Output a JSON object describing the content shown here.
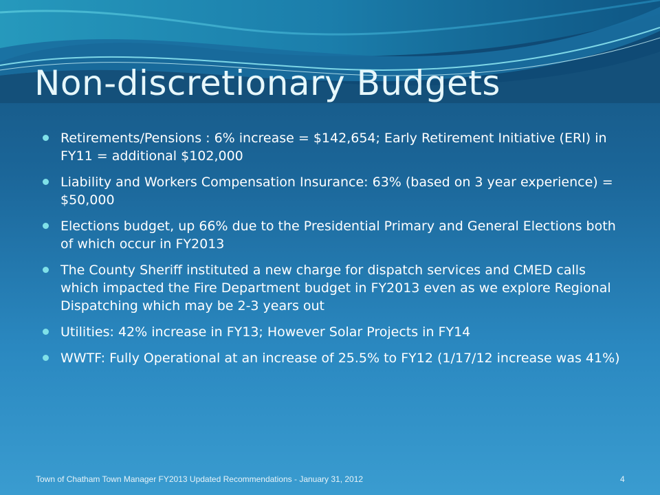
{
  "slide": {
    "title": "Non-discretionary Budgets",
    "bullets": [
      {
        "text": "Retirements/Pensions  : 6% increase = $142,654; Early Retirement Initiative (ERI) in FY11 = additional $102,000"
      },
      {
        "text": "Liability and Workers Compensation Insurance:  63% (based on 3 year experience) = $50,000"
      },
      {
        "text": "Elections budget, up 66% due to the Presidential Primary and General Elections both of which occur in FY2013"
      },
      {
        "text": "The County Sheriff instituted a new charge for dispatch services and CMED calls which impacted the Fire Department budget in FY2013 even as we explore Regional Dispatching which may be 2-3 years out"
      },
      {
        "text": "Utilities: 42% increase in FY13; However Solar Projects in FY14"
      },
      {
        "text": "WWTF: Fully Operational at an increase of 25.5% to FY12 (1/17/12 increase was 41%)"
      }
    ],
    "footer": "Town of Chatham Town Manager FY2013 Updated Recommendations - January 31, 2012",
    "page_number": "4"
  },
  "colors": {
    "title": "#e6f7fb",
    "text": "#ffffff",
    "bullet": "#7fe0e8",
    "background_top": "#14507a",
    "background_bottom": "#3a9cd0"
  }
}
